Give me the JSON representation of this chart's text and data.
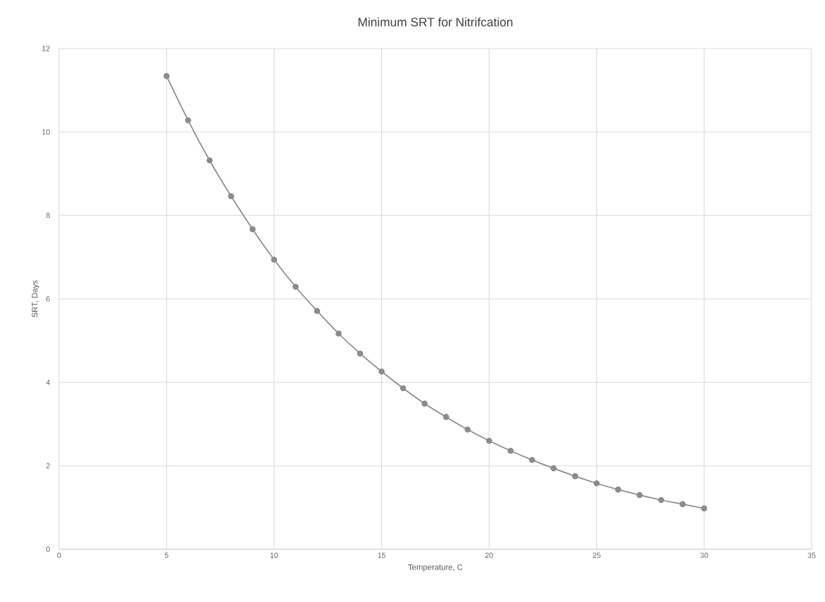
{
  "chart_data": {
    "type": "line",
    "title": "Minimum SRT for Nitrifcation",
    "xlabel": "Temperature, C",
    "ylabel": "SRT, Days",
    "x": [
      5,
      6,
      7,
      8,
      9,
      10,
      11,
      12,
      13,
      14,
      15,
      16,
      17,
      18,
      19,
      20,
      21,
      22,
      23,
      24,
      25,
      26,
      27,
      28,
      29,
      30
    ],
    "series": [
      {
        "color": "#8c8c8c",
        "values": [
          11.34,
          10.28,
          9.32,
          8.46,
          7.67,
          6.94,
          6.29,
          5.71,
          5.17,
          4.69,
          4.26,
          3.86,
          3.49,
          3.17,
          2.87,
          2.6,
          2.36,
          2.14,
          1.94,
          1.75,
          1.58,
          1.43,
          1.3,
          1.18,
          1.08,
          0.98
        ]
      }
    ],
    "xlim": [
      0,
      35
    ],
    "xticks": [
      0,
      5,
      10,
      15,
      20,
      25,
      30,
      35
    ],
    "ylim": [
      0,
      12
    ],
    "yticks": [
      0,
      2,
      4,
      6,
      8,
      10,
      12
    ],
    "grid": true,
    "marker": "circle",
    "line_style": "solid"
  }
}
